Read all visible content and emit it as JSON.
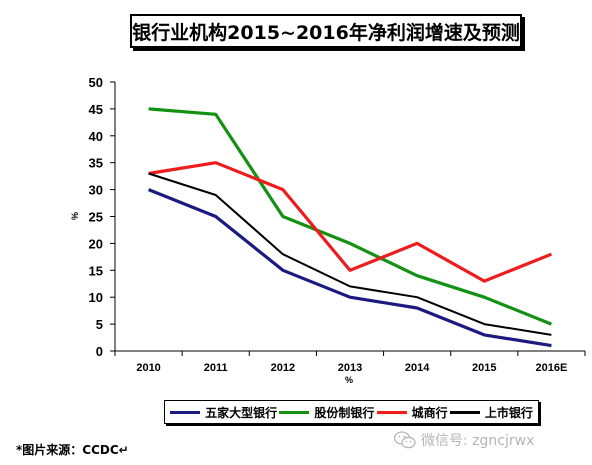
{
  "chart_data": {
    "type": "line",
    "title": "银行业机构2015~2016年净利润增速及预测",
    "categories": [
      "2010",
      "2011",
      "2012",
      "2013",
      "2014",
      "2015",
      "2016E"
    ],
    "ylabel": "%",
    "xlabel": "%",
    "ylim": [
      0,
      50
    ],
    "yticks": [
      "0",
      "5",
      "10",
      "15",
      "20",
      "25",
      "30",
      "35",
      "40",
      "45",
      "50"
    ],
    "legend_position": "bottom",
    "grid": false,
    "series": [
      {
        "name": "五家大型银行",
        "color": "#1a1a80",
        "values": [
          30,
          25,
          15,
          10,
          8,
          3,
          1
        ]
      },
      {
        "name": "股份制银行",
        "color": "#129112",
        "values": [
          45,
          44,
          25,
          20,
          14,
          10,
          5
        ]
      },
      {
        "name": "城商行",
        "color": "#ee1c1c",
        "values": [
          33,
          35,
          30,
          15,
          20,
          13,
          18
        ]
      },
      {
        "name": "上市银行",
        "color": "#000000",
        "values": [
          33,
          29,
          18,
          12,
          10,
          5,
          3
        ]
      }
    ]
  },
  "source_note": "*图片来源：CCDC↵",
  "watermark": {
    "text": "微信号: zgncjrwx",
    "icon": "wechat-icon"
  }
}
